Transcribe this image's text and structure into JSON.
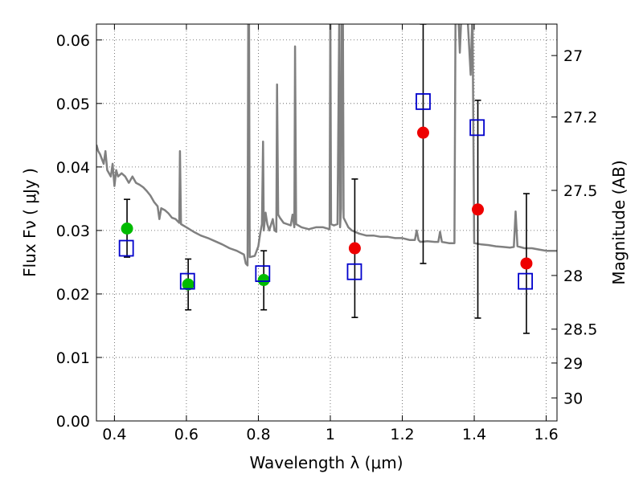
{
  "chart_data": {
    "type": "scatter",
    "xlabel": "Wavelength  λ (μm)",
    "ylabel": "Flux  Fν  ( μJy )",
    "y2label": "Magnitude (AB)",
    "xlim": [
      0.35,
      1.63
    ],
    "ylim": [
      0.0,
      0.0625
    ],
    "x_ticks": [
      {
        "value": 0.4,
        "label": "0.4"
      },
      {
        "value": 0.6,
        "label": "0.6"
      },
      {
        "value": 0.8,
        "label": "0.8"
      },
      {
        "value": 1.0,
        "label": "1"
      },
      {
        "value": 1.2,
        "label": "1.2"
      },
      {
        "value": 1.4,
        "label": "1.4"
      },
      {
        "value": 1.6,
        "label": "1.6"
      }
    ],
    "y_ticks": [
      {
        "value": 0.0,
        "label": "0.00"
      },
      {
        "value": 0.01,
        "label": "0.01"
      },
      {
        "value": 0.02,
        "label": "0.02"
      },
      {
        "value": 0.03,
        "label": "0.03"
      },
      {
        "value": 0.04,
        "label": "0.04"
      },
      {
        "value": 0.05,
        "label": "0.05"
      },
      {
        "value": 0.06,
        "label": "0.06"
      }
    ],
    "y2_ticks": [
      {
        "value": 27.0,
        "label": "27"
      },
      {
        "value": 27.2,
        "label": "27.2"
      },
      {
        "value": 27.5,
        "label": "27.5"
      },
      {
        "value": 28.0,
        "label": "28"
      },
      {
        "value": 28.5,
        "label": "28.5"
      },
      {
        "value": 29.0,
        "label": "29"
      },
      {
        "value": 30.0,
        "label": "30"
      }
    ],
    "grid": true,
    "colors": {
      "model": "#808080",
      "green": "#00bb00",
      "red": "#ee0000",
      "square": "#0000cc",
      "errorbar": "#000000"
    },
    "model_spectrum": [
      [
        0.35,
        0.0435
      ],
      [
        0.355,
        0.0425
      ],
      [
        0.36,
        0.042
      ],
      [
        0.37,
        0.0405
      ],
      [
        0.375,
        0.0425
      ],
      [
        0.38,
        0.0395
      ],
      [
        0.39,
        0.0385
      ],
      [
        0.395,
        0.0405
      ],
      [
        0.4,
        0.037
      ],
      [
        0.405,
        0.0395
      ],
      [
        0.41,
        0.0385
      ],
      [
        0.42,
        0.039
      ],
      [
        0.43,
        0.0385
      ],
      [
        0.44,
        0.0375
      ],
      [
        0.45,
        0.0385
      ],
      [
        0.46,
        0.0375
      ],
      [
        0.47,
        0.0372
      ],
      [
        0.48,
        0.0368
      ],
      [
        0.49,
        0.0362
      ],
      [
        0.5,
        0.0355
      ],
      [
        0.51,
        0.0345
      ],
      [
        0.52,
        0.0338
      ],
      [
        0.525,
        0.0318
      ],
      [
        0.53,
        0.0335
      ],
      [
        0.54,
        0.0332
      ],
      [
        0.55,
        0.0327
      ],
      [
        0.56,
        0.032
      ],
      [
        0.57,
        0.0318
      ],
      [
        0.58,
        0.0312
      ],
      [
        0.582,
        0.0425
      ],
      [
        0.585,
        0.031
      ],
      [
        0.6,
        0.0305
      ],
      [
        0.62,
        0.0298
      ],
      [
        0.64,
        0.0292
      ],
      [
        0.66,
        0.0288
      ],
      [
        0.68,
        0.0283
      ],
      [
        0.7,
        0.0278
      ],
      [
        0.72,
        0.0272
      ],
      [
        0.74,
        0.0268
      ],
      [
        0.76,
        0.0262
      ],
      [
        0.765,
        0.0248
      ],
      [
        0.77,
        0.0245
      ],
      [
        0.772,
        0.065
      ],
      [
        0.774,
        0.065
      ],
      [
        0.776,
        0.0258
      ],
      [
        0.79,
        0.026
      ],
      [
        0.8,
        0.0275
      ],
      [
        0.805,
        0.0295
      ],
      [
        0.81,
        0.031
      ],
      [
        0.813,
        0.044
      ],
      [
        0.815,
        0.03
      ],
      [
        0.82,
        0.0328
      ],
      [
        0.825,
        0.031
      ],
      [
        0.83,
        0.03
      ],
      [
        0.84,
        0.0318
      ],
      [
        0.845,
        0.03
      ],
      [
        0.85,
        0.0298
      ],
      [
        0.852,
        0.053
      ],
      [
        0.855,
        0.0325
      ],
      [
        0.86,
        0.032
      ],
      [
        0.87,
        0.0312
      ],
      [
        0.88,
        0.031
      ],
      [
        0.89,
        0.0308
      ],
      [
        0.895,
        0.0325
      ],
      [
        0.9,
        0.0305
      ],
      [
        0.902,
        0.059
      ],
      [
        0.905,
        0.031
      ],
      [
        0.92,
        0.0305
      ],
      [
        0.94,
        0.0302
      ],
      [
        0.96,
        0.0305
      ],
      [
        0.98,
        0.0305
      ],
      [
        0.998,
        0.0302
      ],
      [
        1.0,
        0.065
      ],
      [
        1.002,
        0.031
      ],
      [
        1.01,
        0.0308
      ],
      [
        1.02,
        0.031
      ],
      [
        1.025,
        0.065
      ],
      [
        1.027,
        0.0305
      ],
      [
        1.03,
        0.0335
      ],
      [
        1.032,
        0.065
      ],
      [
        1.035,
        0.065
      ],
      [
        1.037,
        0.032
      ],
      [
        1.05,
        0.0305
      ],
      [
        1.06,
        0.03
      ],
      [
        1.08,
        0.0295
      ],
      [
        1.1,
        0.0292
      ],
      [
        1.12,
        0.0292
      ],
      [
        1.14,
        0.029
      ],
      [
        1.16,
        0.029
      ],
      [
        1.18,
        0.0288
      ],
      [
        1.2,
        0.0288
      ],
      [
        1.22,
        0.0285
      ],
      [
        1.235,
        0.0285
      ],
      [
        1.24,
        0.03
      ],
      [
        1.245,
        0.0285
      ],
      [
        1.25,
        0.0282
      ],
      [
        1.27,
        0.0283
      ],
      [
        1.29,
        0.0282
      ],
      [
        1.3,
        0.0282
      ],
      [
        1.305,
        0.0298
      ],
      [
        1.31,
        0.0282
      ],
      [
        1.33,
        0.028
      ],
      [
        1.345,
        0.028
      ],
      [
        1.348,
        0.065
      ],
      [
        1.352,
        0.065
      ],
      [
        1.355,
        0.065
      ],
      [
        1.36,
        0.058
      ],
      [
        1.365,
        0.065
      ],
      [
        1.37,
        0.063
      ],
      [
        1.38,
        0.065
      ],
      [
        1.39,
        0.0545
      ],
      [
        1.395,
        0.065
      ],
      [
        1.4,
        0.028
      ],
      [
        1.42,
        0.0278
      ],
      [
        1.44,
        0.0277
      ],
      [
        1.46,
        0.0275
      ],
      [
        1.48,
        0.0274
      ],
      [
        1.5,
        0.0273
      ],
      [
        1.51,
        0.0274
      ],
      [
        1.515,
        0.033
      ],
      [
        1.52,
        0.0275
      ],
      [
        1.54,
        0.0272
      ],
      [
        1.56,
        0.0272
      ],
      [
        1.58,
        0.027
      ],
      [
        1.6,
        0.0268
      ],
      [
        1.63,
        0.0268
      ]
    ],
    "green_points": [
      {
        "x": 0.435,
        "y": 0.0303
      },
      {
        "x": 0.605,
        "y": 0.0215
      },
      {
        "x": 0.815,
        "y": 0.0222
      }
    ],
    "red_points": [
      {
        "x": 1.068,
        "y": 0.0272
      },
      {
        "x": 1.258,
        "y": 0.0454
      },
      {
        "x": 1.41,
        "y": 0.0333
      },
      {
        "x": 1.545,
        "y": 0.0248
      }
    ],
    "model_squares": [
      {
        "x": 0.433,
        "y": 0.0272
      },
      {
        "x": 0.603,
        "y": 0.022
      },
      {
        "x": 0.812,
        "y": 0.0232
      },
      {
        "x": 1.067,
        "y": 0.0235
      },
      {
        "x": 1.258,
        "y": 0.0503
      },
      {
        "x": 1.408,
        "y": 0.0462
      },
      {
        "x": 1.542,
        "y": 0.022
      }
    ],
    "error_bars": [
      {
        "x": 0.435,
        "low": 0.0258,
        "high": 0.0349
      },
      {
        "x": 0.605,
        "low": 0.0175,
        "high": 0.0255
      },
      {
        "x": 0.815,
        "low": 0.0175,
        "high": 0.0268
      },
      {
        "x": 1.068,
        "low": 0.0163,
        "high": 0.0381
      },
      {
        "x": 1.258,
        "low": 0.0248,
        "high": 0.0625
      },
      {
        "x": 1.41,
        "low": 0.0162,
        "high": 0.0505
      },
      {
        "x": 1.545,
        "low": 0.0138,
        "high": 0.0358
      }
    ]
  }
}
